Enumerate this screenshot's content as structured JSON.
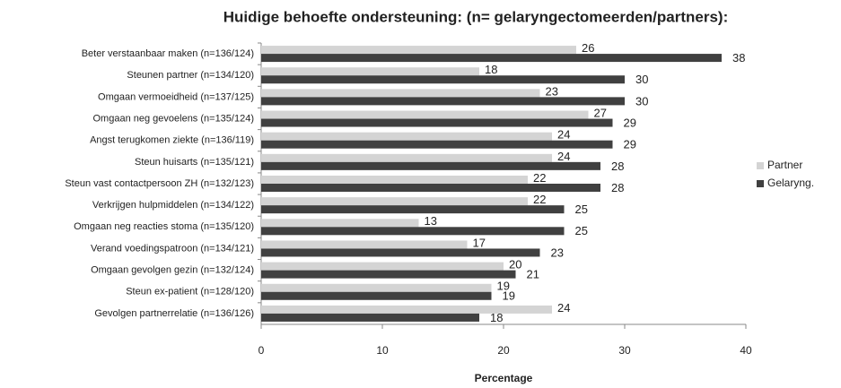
{
  "chart_data": {
    "type": "hbar",
    "title": "Huidige behoefte ondersteuning: (n= gelaryngectomeerden/partners):",
    "xlabel": "Percentage",
    "categories": [
      "Beter verstaanbaar maken (n=136/124)",
      "Steunen partner (n=134/120)",
      "Omgaan vermoeidheid (n=137/125)",
      "Omgaan neg gevoelens (n=135/124)",
      "Angst terugkomen ziekte (n=136/119)",
      "Steun huisarts (n=135/121)",
      "Steun vast contactpersoon  ZH (n=132/123)",
      "Verkrijgen hulpmiddelen (n=134/122)",
      "Omgaan neg reacties stoma (n=135/120)",
      "Verand voedingspatroon  (n=134/121)",
      "Omgaan gevolgen gezin (n=132/124)",
      "Steun ex-patient (n=128/120)",
      "Gevolgen partnerrelatie (n=136/126)"
    ],
    "series": [
      {
        "name": "Partner",
        "color": "#d4d4d4",
        "values": [
          26,
          18,
          23,
          27,
          24,
          24,
          22,
          22,
          13,
          17,
          20,
          19,
          24
        ]
      },
      {
        "name": "Gelaryng.",
        "color": "#404040",
        "values": [
          38,
          30,
          30,
          29,
          29,
          28,
          28,
          25,
          25,
          23,
          21,
          19,
          18
        ]
      }
    ],
    "xlim": [
      0,
      40
    ],
    "xticks": [
      0,
      10,
      20,
      30,
      40
    ],
    "grid": false,
    "legend": "right"
  }
}
